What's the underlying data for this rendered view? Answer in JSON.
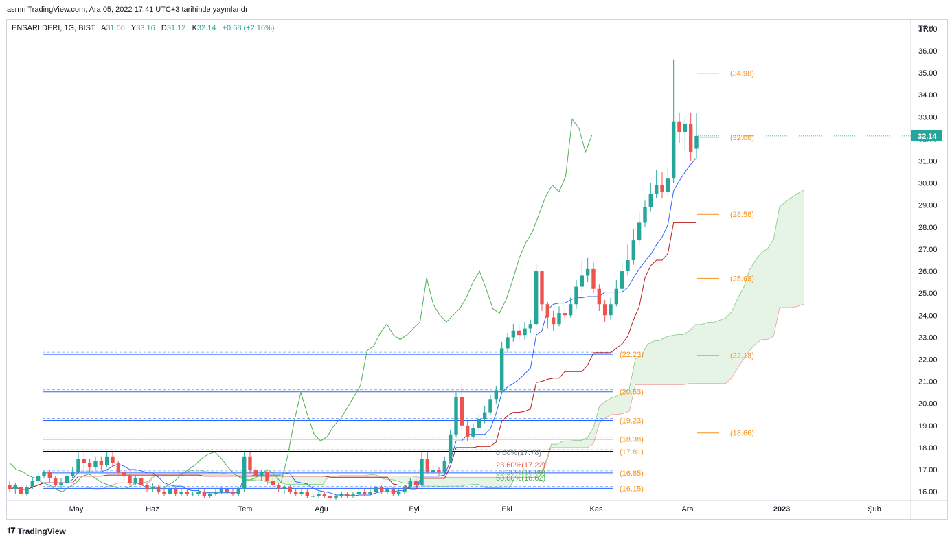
{
  "header": {
    "published_text": "asrnn TradingView.com, Ara 05, 2022 17:41 UTC+3 tarihinde yayınlandı"
  },
  "legend": {
    "symbol": "ENSARI DERI, 1G, BIST",
    "open_label": "A",
    "open_value": "31.56",
    "high_label": "Y",
    "high_value": "33.16",
    "low_label": "D",
    "low_value": "31.12",
    "close_label": "K",
    "close_value": "32.14",
    "change": "+0.68 (+2.16%)"
  },
  "footer": {
    "brand": "TradingView",
    "logo_icon": "tradingview-logo-icon"
  },
  "colors": {
    "up": "#26a69a",
    "down": "#ef5350",
    "level": "#f7931a",
    "horizontal": "#2962ff",
    "lagging": "#4caf50",
    "base": "#b71c1c",
    "conversion": "#2962ff",
    "cloud_green": "#a5d6a7",
    "cloud_red": "#ef9a9a"
  },
  "chart_data": {
    "type": "candlestick",
    "currency_label": "TRY",
    "ylim": [
      15.6,
      37.4
    ],
    "y_ticks": [
      "37.00",
      "36.00",
      "35.00",
      "34.00",
      "33.00",
      "32.00",
      "31.00",
      "30.00",
      "29.00",
      "28.00",
      "27.00",
      "26.00",
      "25.00",
      "24.00",
      "23.00",
      "22.00",
      "21.00",
      "20.00",
      "19.00",
      "18.00",
      "17.00",
      "16.00"
    ],
    "x_ticks": [
      "May",
      "Haz",
      "Tem",
      "Ağu",
      "Eyl",
      "Eki",
      "Kas",
      "Ara",
      "2023",
      "Şub"
    ],
    "last_price": "32.14",
    "candles": [
      [
        16.3,
        16.1,
        16.5,
        16.0
      ],
      [
        16.1,
        16.3,
        16.4,
        15.9
      ],
      [
        16.2,
        15.9,
        16.3,
        15.8
      ],
      [
        15.9,
        16.2,
        16.3,
        15.8
      ],
      [
        16.2,
        16.5,
        16.6,
        16.1
      ],
      [
        16.5,
        16.7,
        16.9,
        16.4
      ],
      [
        16.7,
        16.9,
        17.0,
        16.6
      ],
      [
        16.9,
        16.6,
        17.0,
        16.4
      ],
      [
        16.6,
        16.3,
        16.7,
        16.2
      ],
      [
        16.3,
        16.4,
        16.6,
        16.1
      ],
      [
        16.4,
        16.7,
        16.8,
        16.3
      ],
      [
        16.7,
        16.9,
        17.1,
        16.6
      ],
      [
        16.9,
        17.5,
        17.8,
        16.8
      ],
      [
        17.5,
        17.3,
        17.8,
        17.0
      ],
      [
        17.3,
        17.1,
        17.5,
        16.9
      ],
      [
        17.1,
        17.4,
        17.6,
        17.0
      ],
      [
        17.4,
        17.2,
        17.6,
        17.0
      ],
      [
        17.2,
        17.6,
        17.8,
        17.1
      ],
      [
        17.6,
        17.3,
        17.8,
        17.1
      ],
      [
        17.3,
        16.9,
        17.4,
        16.8
      ],
      [
        16.9,
        16.7,
        17.0,
        16.5
      ],
      [
        16.7,
        16.4,
        16.8,
        16.3
      ],
      [
        16.4,
        16.6,
        16.7,
        16.3
      ],
      [
        16.6,
        16.3,
        16.7,
        16.2
      ],
      [
        16.3,
        16.1,
        16.4,
        16.0
      ],
      [
        16.1,
        16.2,
        16.4,
        16.0
      ],
      [
        16.2,
        16.0,
        16.3,
        15.9
      ],
      [
        16.0,
        15.9,
        16.1,
        15.8
      ],
      [
        15.9,
        16.1,
        16.2,
        15.8
      ],
      [
        16.1,
        15.9,
        16.2,
        15.8
      ],
      [
        15.9,
        16.0,
        16.1,
        15.8
      ],
      [
        16.0,
        15.9,
        16.1,
        15.8
      ],
      [
        15.9,
        15.9,
        16.0,
        15.8
      ],
      [
        15.9,
        16.0,
        16.1,
        15.8
      ],
      [
        16.0,
        15.8,
        16.1,
        15.7
      ],
      [
        15.8,
        15.9,
        16.0,
        15.7
      ],
      [
        15.9,
        16.0,
        16.1,
        15.8
      ],
      [
        16.0,
        16.1,
        16.2,
        15.9
      ],
      [
        16.1,
        16.0,
        16.2,
        15.9
      ],
      [
        16.0,
        15.9,
        16.1,
        15.8
      ],
      [
        15.9,
        16.1,
        16.2,
        15.8
      ],
      [
        16.1,
        17.6,
        17.8,
        16.0
      ],
      [
        17.6,
        17.0,
        17.8,
        16.8
      ],
      [
        17.0,
        16.7,
        17.1,
        16.5
      ],
      [
        16.7,
        16.9,
        17.0,
        16.5
      ],
      [
        16.9,
        16.5,
        17.0,
        16.3
      ],
      [
        16.5,
        16.3,
        16.6,
        16.1
      ],
      [
        16.3,
        16.1,
        16.4,
        16.0
      ],
      [
        16.1,
        16.2,
        16.3,
        15.9
      ],
      [
        16.2,
        16.0,
        16.3,
        15.9
      ],
      [
        16.0,
        15.9,
        16.1,
        15.8
      ],
      [
        15.9,
        16.0,
        16.1,
        15.8
      ],
      [
        16.0,
        15.8,
        16.1,
        15.7
      ],
      [
        15.8,
        15.8,
        15.9,
        15.7
      ],
      [
        15.8,
        15.9,
        16.0,
        15.7
      ],
      [
        15.9,
        15.8,
        16.0,
        15.7
      ],
      [
        15.8,
        15.7,
        15.9,
        15.6
      ],
      [
        15.7,
        15.8,
        15.9,
        15.6
      ],
      [
        15.8,
        15.9,
        16.0,
        15.7
      ],
      [
        15.9,
        15.8,
        16.0,
        15.7
      ],
      [
        15.8,
        15.9,
        16.0,
        15.7
      ],
      [
        15.9,
        16.0,
        16.1,
        15.8
      ],
      [
        16.0,
        15.9,
        16.1,
        15.8
      ],
      [
        15.9,
        16.0,
        16.2,
        15.8
      ],
      [
        16.0,
        16.2,
        16.3,
        15.9
      ],
      [
        16.2,
        16.0,
        16.3,
        15.9
      ],
      [
        16.0,
        16.1,
        16.2,
        15.9
      ],
      [
        16.1,
        15.9,
        16.2,
        15.8
      ],
      [
        15.9,
        16.0,
        16.1,
        15.8
      ],
      [
        16.0,
        16.2,
        16.3,
        15.9
      ],
      [
        16.2,
        16.5,
        16.6,
        16.1
      ],
      [
        16.5,
        16.3,
        16.6,
        16.2
      ],
      [
        16.3,
        17.5,
        17.8,
        16.2
      ],
      [
        17.5,
        16.9,
        17.8,
        16.8
      ],
      [
        16.9,
        17.0,
        17.2,
        16.8
      ],
      [
        17.0,
        16.9,
        17.1,
        16.7
      ],
      [
        16.9,
        17.4,
        17.6,
        16.8
      ],
      [
        17.4,
        18.6,
        18.8,
        17.3
      ],
      [
        18.6,
        20.3,
        20.5,
        18.5
      ],
      [
        20.3,
        19.0,
        20.9,
        18.8
      ],
      [
        19.0,
        18.5,
        19.2,
        18.3
      ],
      [
        18.5,
        18.9,
        19.1,
        18.4
      ],
      [
        18.9,
        19.3,
        19.5,
        18.7
      ],
      [
        19.3,
        19.6,
        19.9,
        19.1
      ],
      [
        19.6,
        20.2,
        20.4,
        19.5
      ],
      [
        20.2,
        20.6,
        20.8,
        20.0
      ],
      [
        20.6,
        22.5,
        22.8,
        20.5
      ],
      [
        22.5,
        23.0,
        23.2,
        22.3
      ],
      [
        23.0,
        23.3,
        23.6,
        22.8
      ],
      [
        23.3,
        23.1,
        23.6,
        22.9
      ],
      [
        23.1,
        23.4,
        23.7,
        22.9
      ],
      [
        23.4,
        23.6,
        23.8,
        23.2
      ],
      [
        23.6,
        26.0,
        26.3,
        23.5
      ],
      [
        26.0,
        24.5,
        26.0,
        24.2
      ],
      [
        24.5,
        23.9,
        24.6,
        23.4
      ],
      [
        23.9,
        23.6,
        24.2,
        23.3
      ],
      [
        23.6,
        24.1,
        24.4,
        23.5
      ],
      [
        24.1,
        24.0,
        24.3,
        23.8
      ],
      [
        24.0,
        24.5,
        24.8,
        23.9
      ],
      [
        24.5,
        25.3,
        25.6,
        24.3
      ],
      [
        25.3,
        25.8,
        26.5,
        25.1
      ],
      [
        25.8,
        26.1,
        26.6,
        25.5
      ],
      [
        26.1,
        25.2,
        26.4,
        25.0
      ],
      [
        25.2,
        24.5,
        25.4,
        24.2
      ],
      [
        24.5,
        24.0,
        24.7,
        23.7
      ],
      [
        24.0,
        24.5,
        24.8,
        23.8
      ],
      [
        24.5,
        25.2,
        25.6,
        24.4
      ],
      [
        25.2,
        26.0,
        26.4,
        25.0
      ],
      [
        26.0,
        26.5,
        27.2,
        25.8
      ],
      [
        26.5,
        27.4,
        27.9,
        26.3
      ],
      [
        27.4,
        28.2,
        28.7,
        27.2
      ],
      [
        28.2,
        28.9,
        29.2,
        28.0
      ],
      [
        28.9,
        29.5,
        30.0,
        28.7
      ],
      [
        29.5,
        29.9,
        30.6,
        29.3
      ],
      [
        29.9,
        29.6,
        30.5,
        29.3
      ],
      [
        29.6,
        30.2,
        30.7,
        29.4
      ],
      [
        30.2,
        32.8,
        35.6,
        30.0
      ],
      [
        32.8,
        32.3,
        33.2,
        31.8
      ],
      [
        32.3,
        32.7,
        33.0,
        31.5
      ],
      [
        32.7,
        31.4,
        33.2,
        31.0
      ],
      [
        31.56,
        32.14,
        33.16,
        31.12
      ]
    ],
    "levels": [
      {
        "label": "(34.98)",
        "value": 34.98
      },
      {
        "label": "(32.08)",
        "value": 32.08
      },
      {
        "label": "(28.58)",
        "value": 28.58
      },
      {
        "label": "(25.68)",
        "value": 25.68
      },
      {
        "label": "(22.18)",
        "value": 22.18
      },
      {
        "label": "(18.66)",
        "value": 18.66
      }
    ],
    "horizontal_lines": [
      {
        "label": "(22.23)",
        "value": 22.23
      },
      {
        "label": "(20.53)",
        "value": 20.53
      },
      {
        "label": "(19.23)",
        "value": 19.23
      },
      {
        "label": "(18.38)",
        "value": 18.38
      },
      {
        "label": "(17.81)",
        "value": 17.81
      },
      {
        "label": "(16.85)",
        "value": 16.85
      },
      {
        "label": "(16.15)",
        "value": 16.15
      }
    ],
    "fib_labels": [
      {
        "label": "0.00%(17.78)",
        "value": 17.78,
        "color": "#787b86"
      },
      {
        "label": "23.60%(17.22)",
        "value": 17.22,
        "color": "#ef5350"
      },
      {
        "label": "38.20%(16.89)",
        "value": 16.89,
        "color": "#4caf50"
      },
      {
        "label": "50.00%(16.62)",
        "value": 16.62,
        "color": "#4caf50"
      }
    ],
    "lagging_span": [
      17.3,
      17.0,
      16.9,
      16.7,
      16.6,
      16.4,
      16.3,
      16.1,
      16.0,
      16.2,
      16.4,
      16.7,
      16.8,
      16.6,
      16.4,
      16.3,
      16.2,
      16.1,
      16.2,
      16.4,
      16.3,
      16.1,
      16.2,
      16.1,
      16.3,
      16.5,
      16.8,
      17.0,
      17.2,
      17.5,
      17.7,
      17.8,
      17.5,
      17.1,
      16.8,
      16.6,
      16.5,
      16.6,
      16.8,
      17.0,
      16.8,
      16.4,
      17.6,
      19.2,
      20.5,
      19.5,
      18.6,
      18.3,
      18.5,
      19.0,
      19.3,
      19.8,
      20.3,
      20.8,
      22.4,
      22.6,
      23.2,
      23.6,
      23.1,
      22.9,
      23.1,
      23.4,
      23.7,
      25.7,
      24.5,
      24.0,
      23.7,
      24.0,
      24.3,
      24.8,
      25.5,
      26.0,
      25.2,
      24.3,
      24.1,
      24.7,
      25.6,
      26.6,
      27.3,
      27.8,
      28.6,
      29.4,
      29.9,
      29.6,
      30.3,
      32.9,
      32.5,
      31.4,
      32.2
    ]
  }
}
